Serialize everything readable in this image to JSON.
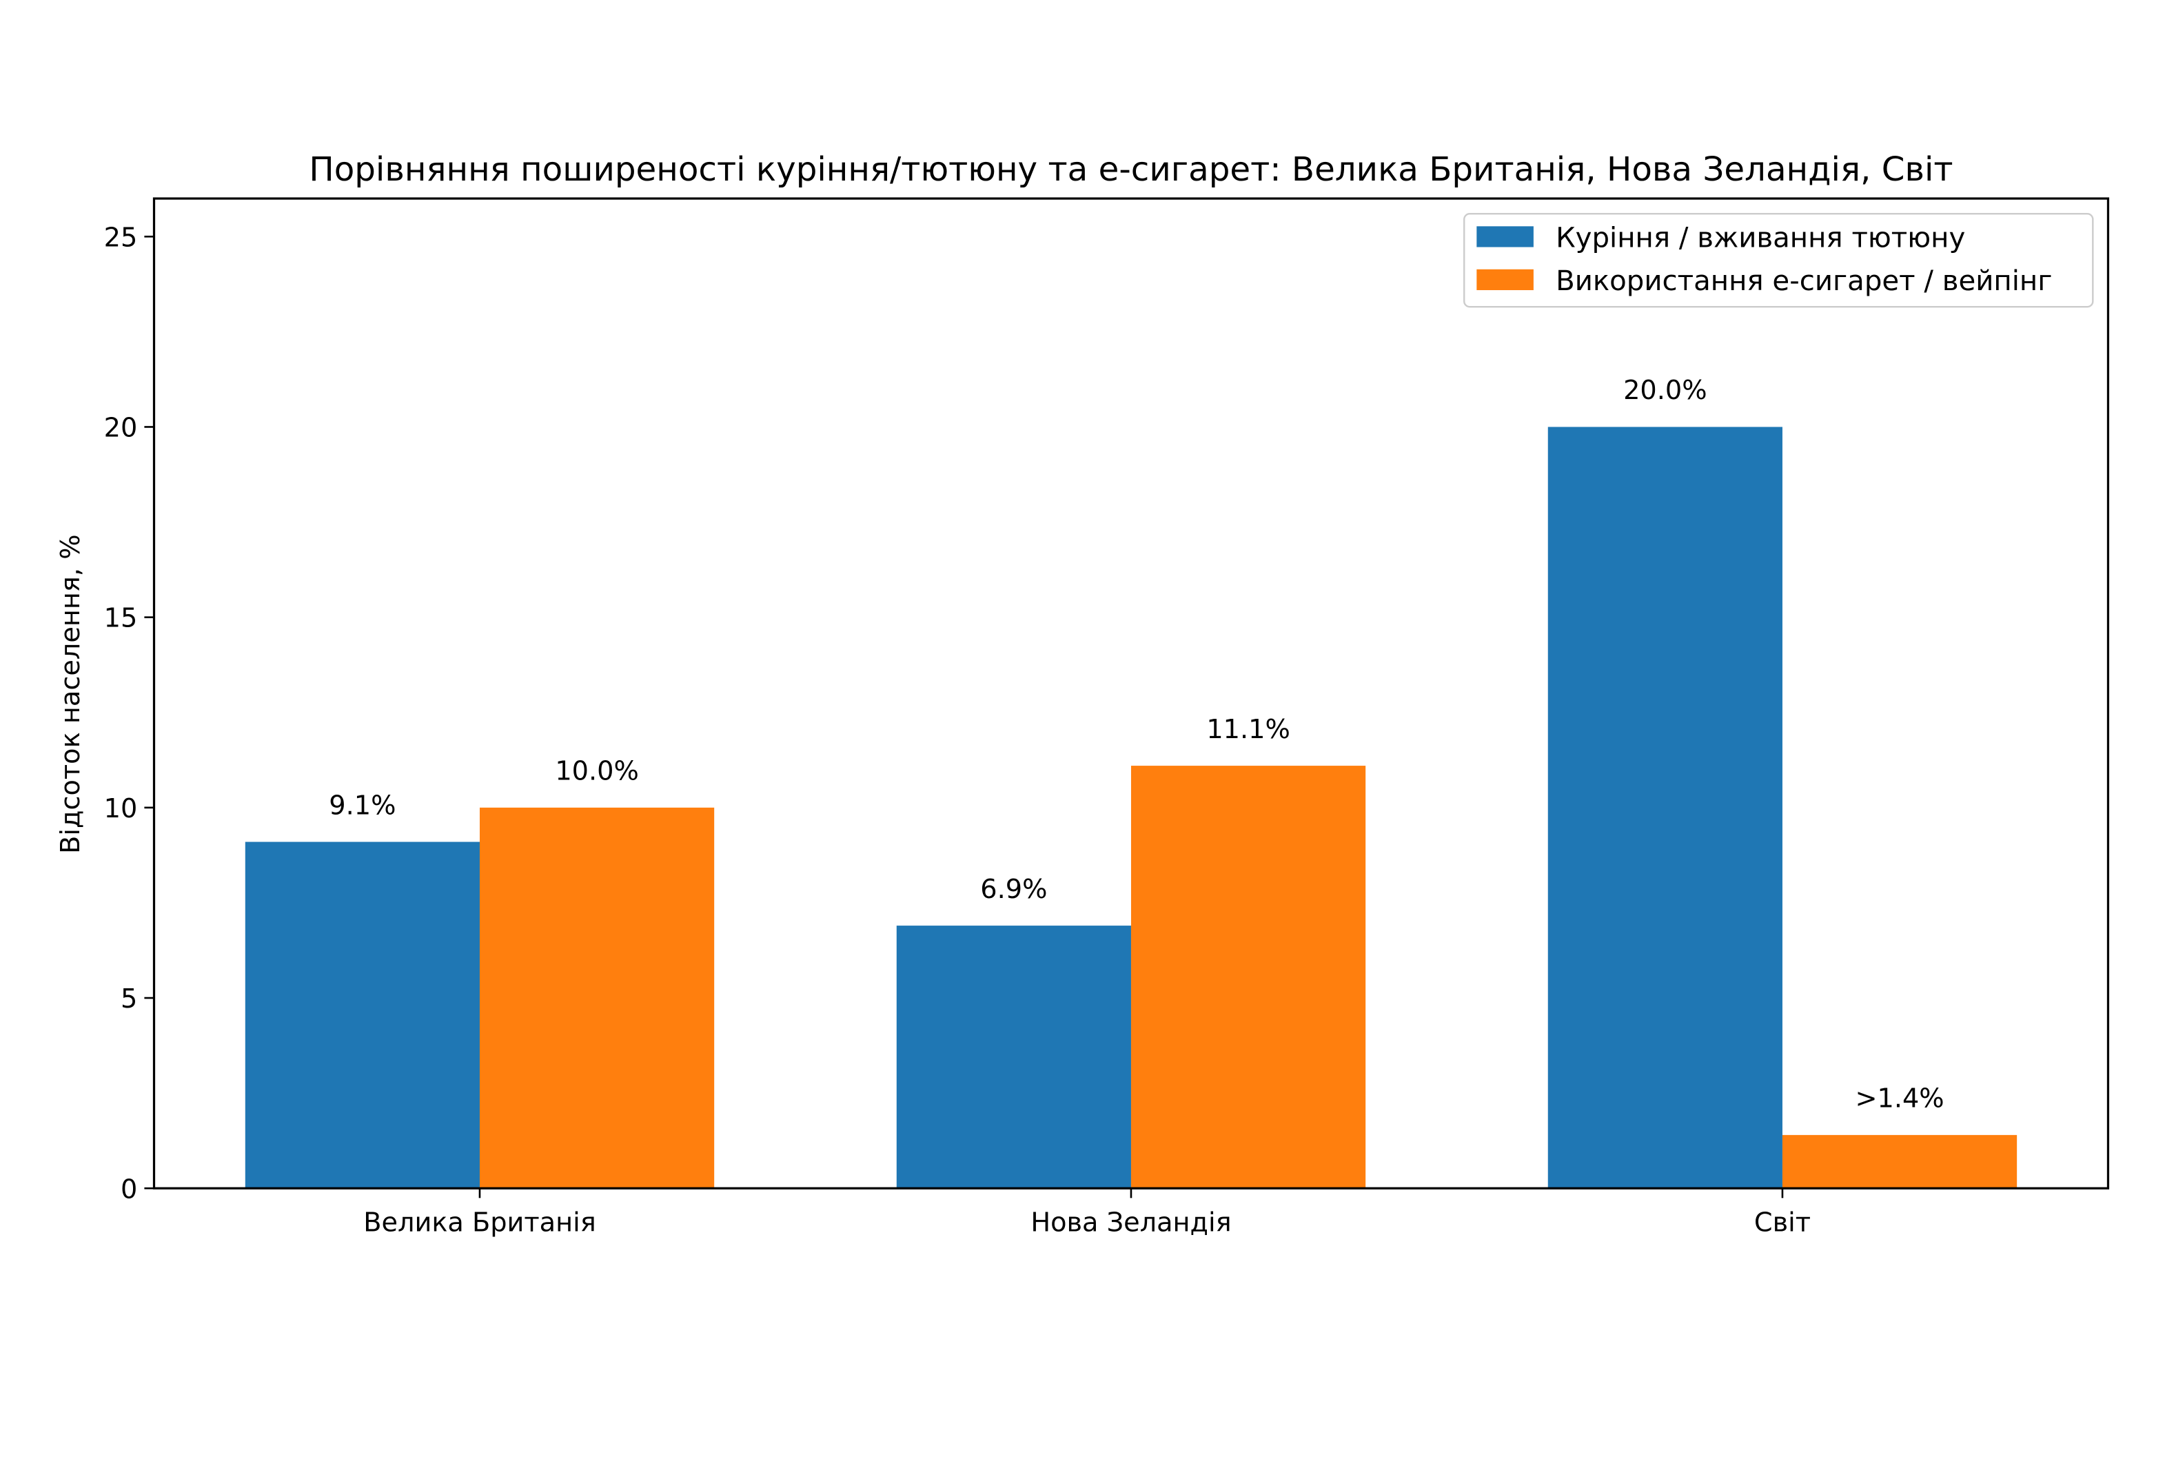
{
  "chart_data": {
    "type": "bar",
    "title": "Порівняння поширеності куріння/тютюну та е-сигарет: Велика Британія, Нова Зеландія, Світ",
    "xlabel": "",
    "ylabel": "Відсоток населення, %",
    "categories": [
      "Велика Британія",
      "Нова Зеландія",
      "Світ"
    ],
    "series": [
      {
        "name": "Куріння / вживання тютюну",
        "color": "#1f77b4",
        "values": [
          9.1,
          6.9,
          20.0
        ],
        "labels": [
          "9.1%",
          "6.9%",
          "20.0%"
        ]
      },
      {
        "name": "Використання е-сигарет / вейпінг",
        "color": "#ff7f0e",
        "values": [
          10.0,
          11.1,
          1.4
        ],
        "labels": [
          "10.0%",
          "11.1%",
          ">1.4%"
        ]
      }
    ],
    "ylim": [
      0,
      26
    ],
    "yticks": [
      0,
      5,
      10,
      15,
      20,
      25
    ],
    "grid": false,
    "legend": "top-right"
  }
}
